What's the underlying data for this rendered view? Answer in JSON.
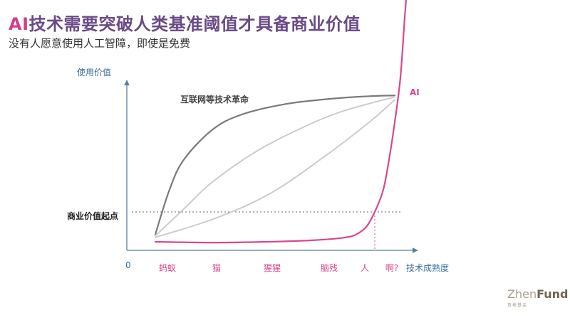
{
  "slide": {
    "title_prefix": "AI",
    "title_rest": "技术需要突破人类基准阈值才具备商业价值",
    "subtitle": "没有人愿意使用人工智障，即使是免费"
  },
  "logo": {
    "zhen": "Zhen",
    "fund": "Fund",
    "sub": "真格基金"
  },
  "colors": {
    "accent": "#d9478e",
    "title_purple": "#6a4b86",
    "axis": "#5b7f95",
    "curve_dark": "#7a7a7a",
    "curve_light": "#cccccc"
  },
  "chart_data": {
    "type": "line",
    "ylabel": "使用价值",
    "xlabel": "技术成熟度",
    "origin_label": "0",
    "x_categories": [
      "蚂蚁",
      "猫",
      "猩猩",
      "脑残",
      "人",
      "啊?"
    ],
    "threshold": {
      "label": "商业价值起点",
      "y": 0.2
    },
    "human_marker_x": 0.87,
    "grid": false,
    "series": [
      {
        "name": "互联网等技术革命",
        "style": "dark",
        "points": [
          [
            0.1,
            0.05
          ],
          [
            0.15,
            0.35
          ],
          [
            0.2,
            0.55
          ],
          [
            0.3,
            0.75
          ],
          [
            0.4,
            0.85
          ],
          [
            0.55,
            0.92
          ],
          [
            0.7,
            0.955
          ],
          [
            0.85,
            0.975
          ],
          [
            0.94,
            0.98
          ]
        ]
      },
      {
        "name": "",
        "style": "light",
        "points": [
          [
            0.1,
            0.04
          ],
          [
            0.2,
            0.22
          ],
          [
            0.3,
            0.4
          ],
          [
            0.45,
            0.6
          ],
          [
            0.6,
            0.75
          ],
          [
            0.75,
            0.87
          ],
          [
            0.94,
            0.97
          ]
        ]
      },
      {
        "name": "",
        "style": "light",
        "points": [
          [
            0.1,
            0.03
          ],
          [
            0.3,
            0.15
          ],
          [
            0.5,
            0.32
          ],
          [
            0.7,
            0.58
          ],
          [
            0.85,
            0.8
          ],
          [
            0.94,
            0.95
          ]
        ]
      },
      {
        "name": "AI",
        "style": "accent",
        "points": [
          [
            0.1,
            0.0
          ],
          [
            0.3,
            -0.005
          ],
          [
            0.5,
            0.0
          ],
          [
            0.65,
            0.01
          ],
          [
            0.75,
            0.025
          ],
          [
            0.8,
            0.045
          ],
          [
            0.84,
            0.1
          ],
          [
            0.87,
            0.2
          ],
          [
            0.9,
            0.35
          ],
          [
            0.92,
            0.55
          ],
          [
            0.94,
            0.8
          ],
          [
            0.96,
            1.1
          ],
          [
            0.975,
            1.5
          ],
          [
            0.985,
            1.75
          ]
        ]
      }
    ]
  }
}
